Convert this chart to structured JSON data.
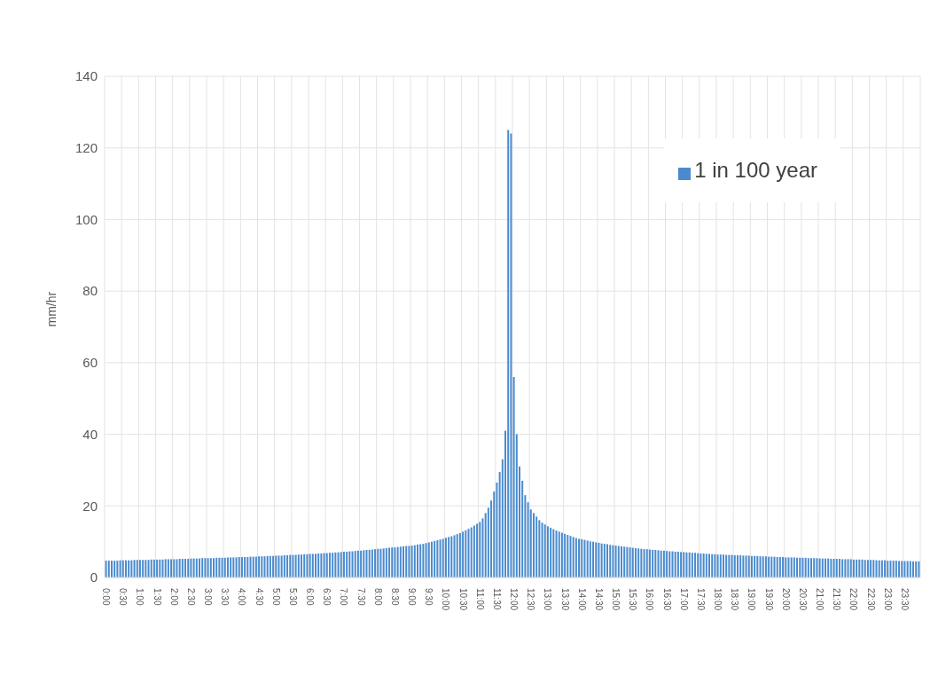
{
  "chart_data": {
    "type": "bar",
    "ylabel": "mm/hr",
    "categories": [
      "0:00",
      null,
      null,
      null,
      null,
      null,
      "0:30",
      null,
      null,
      null,
      null,
      null,
      "1:00",
      null,
      null,
      null,
      null,
      null,
      "1:30",
      null,
      null,
      null,
      null,
      null,
      "2:00",
      null,
      null,
      null,
      null,
      null,
      "2:30",
      null,
      null,
      null,
      null,
      null,
      "3:00",
      null,
      null,
      null,
      null,
      null,
      "3:30",
      null,
      null,
      null,
      null,
      null,
      "4:00",
      null,
      null,
      null,
      null,
      null,
      "4:30",
      null,
      null,
      null,
      null,
      null,
      "5:00",
      null,
      null,
      null,
      null,
      null,
      "5:30",
      null,
      null,
      null,
      null,
      null,
      "6:00",
      null,
      null,
      null,
      null,
      null,
      "6:30",
      null,
      null,
      null,
      null,
      null,
      "7:00",
      null,
      null,
      null,
      null,
      null,
      "7:30",
      null,
      null,
      null,
      null,
      null,
      "8:00",
      null,
      null,
      null,
      null,
      null,
      "8:30",
      null,
      null,
      null,
      null,
      null,
      "9:00",
      null,
      null,
      null,
      null,
      null,
      "9:30",
      null,
      null,
      null,
      null,
      null,
      "10:00",
      null,
      null,
      null,
      null,
      null,
      "10:30",
      null,
      null,
      null,
      null,
      null,
      "11:00",
      null,
      null,
      null,
      null,
      null,
      "11:30",
      null,
      null,
      null,
      null,
      null,
      "12:00",
      null,
      null,
      null,
      null,
      null,
      "12:30",
      null,
      null,
      null,
      null,
      null,
      "13:00",
      null,
      null,
      null,
      null,
      null,
      "13:30",
      null,
      null,
      null,
      null,
      null,
      "14:00",
      null,
      null,
      null,
      null,
      null,
      "14:30",
      null,
      null,
      null,
      null,
      null,
      "15:00",
      null,
      null,
      null,
      null,
      null,
      "15:30",
      null,
      null,
      null,
      null,
      null,
      "16:00",
      null,
      null,
      null,
      null,
      null,
      "16:30",
      null,
      null,
      null,
      null,
      null,
      "17:00",
      null,
      null,
      null,
      null,
      null,
      "17:30",
      null,
      null,
      null,
      null,
      null,
      "18:00",
      null,
      null,
      null,
      null,
      null,
      "18:30",
      null,
      null,
      null,
      null,
      null,
      "19:00",
      null,
      null,
      null,
      null,
      null,
      "19:30",
      null,
      null,
      null,
      null,
      null,
      "20:00",
      null,
      null,
      null,
      null,
      null,
      "20:30",
      null,
      null,
      null,
      null,
      null,
      "21:00",
      null,
      null,
      null,
      null,
      null,
      "21:30",
      null,
      null,
      null,
      null,
      null,
      "22:00",
      null,
      null,
      null,
      null,
      null,
      "22:30",
      null,
      null,
      null,
      null,
      null,
      "23:00",
      null,
      null,
      null,
      null,
      null,
      "23:30",
      null,
      null,
      null,
      null,
      null
    ],
    "series": [
      {
        "name": "1 in 100 year",
        "color": "#4a8bcf",
        "values": [
          4.7,
          4.7,
          4.7,
          4.7,
          4.7,
          4.8,
          4.8,
          4.8,
          4.8,
          4.8,
          4.9,
          4.9,
          4.9,
          4.9,
          4.9,
          4.9,
          5.0,
          5.0,
          5.0,
          5.0,
          5.0,
          5.1,
          5.1,
          5.1,
          5.1,
          5.1,
          5.2,
          5.2,
          5.2,
          5.2,
          5.3,
          5.3,
          5.3,
          5.3,
          5.4,
          5.4,
          5.4,
          5.4,
          5.4,
          5.5,
          5.5,
          5.5,
          5.5,
          5.6,
          5.6,
          5.6,
          5.6,
          5.7,
          5.7,
          5.7,
          5.7,
          5.8,
          5.8,
          5.8,
          5.9,
          5.9,
          5.9,
          6.0,
          6.0,
          6.0,
          6.1,
          6.1,
          6.1,
          6.2,
          6.2,
          6.3,
          6.3,
          6.3,
          6.4,
          6.4,
          6.5,
          6.5,
          6.6,
          6.6,
          6.6,
          6.7,
          6.7,
          6.8,
          6.8,
          6.9,
          6.9,
          7.0,
          7.0,
          7.1,
          7.2,
          7.2,
          7.3,
          7.3,
          7.4,
          7.5,
          7.5,
          7.6,
          7.7,
          7.7,
          7.8,
          7.9,
          8.0,
          8.0,
          8.1,
          8.2,
          8.3,
          8.4,
          8.4,
          8.5,
          8.6,
          8.7,
          8.8,
          8.8,
          8.9,
          9.0,
          9.2,
          9.3,
          9.4,
          9.6,
          9.8,
          10.0,
          10.2,
          10.4,
          10.6,
          10.8,
          11.1,
          11.3,
          11.5,
          11.8,
          12.1,
          12.4,
          12.8,
          13.2,
          13.6,
          14.0,
          14.5,
          15.0,
          15.5,
          16.5,
          18.0,
          19.5,
          21.5,
          24.0,
          26.5,
          29.5,
          33.0,
          41.0,
          125.0,
          124.0,
          56,
          40,
          31,
          27,
          23,
          21,
          19,
          18,
          17,
          16,
          15.3,
          14.8,
          14.3,
          13.9,
          13.5,
          13.1,
          12.8,
          12.5,
          12.2,
          11.9,
          11.6,
          11.3,
          11.0,
          10.8,
          10.7,
          10.5,
          10.3,
          10.1,
          10.0,
          9.8,
          9.7,
          9.5,
          9.4,
          9.3,
          9.1,
          9.0,
          8.9,
          8.8,
          8.7,
          8.6,
          8.5,
          8.4,
          8.3,
          8.2,
          8.1,
          8.0,
          7.9,
          7.9,
          7.8,
          7.7,
          7.7,
          7.6,
          7.5,
          7.5,
          7.4,
          7.3,
          7.3,
          7.2,
          7.2,
          7.1,
          7.1,
          7.0,
          7.0,
          6.9,
          6.9,
          6.8,
          6.7,
          6.7,
          6.6,
          6.6,
          6.5,
          6.5,
          6.4,
          6.4,
          6.4,
          6.3,
          6.3,
          6.3,
          6.2,
          6.2,
          6.2,
          6.1,
          6.1,
          6.1,
          6.0,
          6.0,
          6.0,
          5.9,
          5.9,
          5.9,
          5.8,
          5.8,
          5.8,
          5.7,
          5.7,
          5.7,
          5.6,
          5.6,
          5.6,
          5.6,
          5.5,
          5.5,
          5.5,
          5.5,
          5.4,
          5.4,
          5.4,
          5.4,
          5.3,
          5.3,
          5.3,
          5.3,
          5.2,
          5.2,
          5.2,
          5.2,
          5.1,
          5.1,
          5.1,
          5.1,
          5.0,
          5.0,
          5.0,
          5.0,
          4.9,
          4.9,
          4.9,
          4.9,
          4.8,
          4.8,
          4.8,
          4.8,
          4.7,
          4.7,
          4.7,
          4.7,
          4.6,
          4.6,
          4.6,
          4.6,
          4.6,
          4.5,
          4.5,
          4.5
        ]
      }
    ],
    "ylim": [
      0,
      140
    ],
    "yticks": [
      0,
      20,
      40,
      60,
      80,
      100,
      120,
      140
    ],
    "grid": true,
    "legend": "top right"
  }
}
